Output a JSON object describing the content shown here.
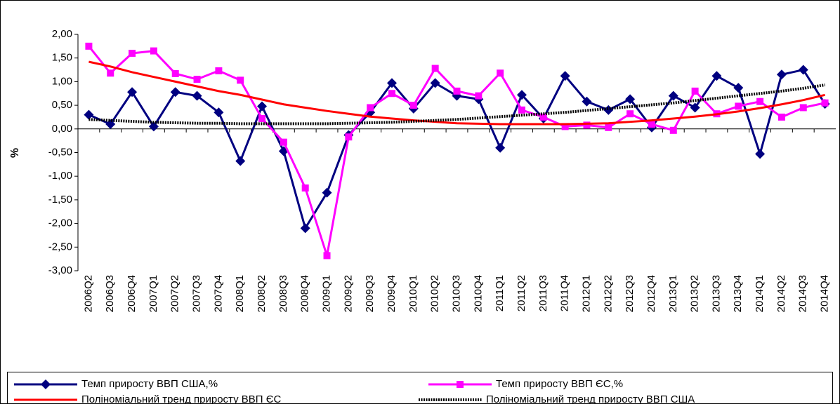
{
  "chart_data": {
    "type": "line",
    "y_label": "%",
    "categories": [
      "2006Q2",
      "2006Q3",
      "2006Q4",
      "2007Q1",
      "2007Q2",
      "2007Q3",
      "2007Q4",
      "2008Q1",
      "2008Q2",
      "2008Q3",
      "2008Q4",
      "2009Q1",
      "2009Q2",
      "2009Q3",
      "2009Q4",
      "2010Q1",
      "2010Q2",
      "2010Q3",
      "2010Q4",
      "2011Q1",
      "2011Q2",
      "2011Q3",
      "2011Q4",
      "2012Q1",
      "2012Q2",
      "2012Q3",
      "2012Q4",
      "2013Q1",
      "2013Q2",
      "2013Q3",
      "2013Q4",
      "2014Q1",
      "2014Q2",
      "2014Q3",
      "2014Q4"
    ],
    "series": [
      {
        "name": "Темп приросту ВВП США,%",
        "color": "#000080",
        "marker": "diamond",
        "values": [
          0.3,
          0.1,
          0.78,
          0.05,
          0.78,
          0.7,
          0.35,
          -0.68,
          0.48,
          -0.47,
          -2.1,
          -1.35,
          -0.13,
          0.35,
          0.97,
          0.43,
          0.97,
          0.7,
          0.63,
          -0.4,
          0.72,
          0.22,
          1.12,
          0.58,
          0.4,
          0.63,
          0.03,
          0.7,
          0.45,
          1.12,
          0.87,
          -0.53,
          1.15,
          1.25,
          0.53
        ]
      },
      {
        "name": "Темп приросту ВВП ЄС,%",
        "color": "#ff00ff",
        "marker": "square",
        "values": [
          1.75,
          1.18,
          1.6,
          1.65,
          1.17,
          1.05,
          1.23,
          1.03,
          0.22,
          -0.28,
          -1.25,
          -2.68,
          -0.17,
          0.45,
          0.75,
          0.5,
          1.28,
          0.8,
          0.7,
          1.18,
          0.4,
          0.25,
          0.05,
          0.08,
          0.03,
          0.32,
          0.1,
          -0.03,
          0.8,
          0.32,
          0.48,
          0.58,
          0.25,
          0.45,
          0.55
        ]
      },
      {
        "name": "Поліноміальний тренд приросту ВВП ЄС",
        "color": "#ff0000",
        "marker": "none",
        "dash": "solid",
        "values": [
          1.42,
          1.32,
          1.2,
          1.1,
          1.0,
          0.9,
          0.8,
          0.72,
          0.62,
          0.52,
          0.45,
          0.38,
          0.32,
          0.26,
          0.22,
          0.18,
          0.15,
          0.12,
          0.11,
          0.1,
          0.1,
          0.1,
          0.1,
          0.11,
          0.12,
          0.15,
          0.18,
          0.22,
          0.26,
          0.31,
          0.37,
          0.44,
          0.52,
          0.61,
          0.72
        ]
      },
      {
        "name": "Поліноміальний тренд приросту ВВП США",
        "color": "#000000",
        "marker": "none",
        "dash": "dotted",
        "values": [
          0.2,
          0.18,
          0.16,
          0.14,
          0.13,
          0.12,
          0.12,
          0.11,
          0.11,
          0.11,
          0.11,
          0.11,
          0.12,
          0.13,
          0.14,
          0.16,
          0.18,
          0.2,
          0.23,
          0.26,
          0.29,
          0.32,
          0.35,
          0.39,
          0.43,
          0.47,
          0.51,
          0.55,
          0.6,
          0.65,
          0.7,
          0.75,
          0.8,
          0.86,
          0.93
        ]
      }
    ],
    "ylim": [
      -3,
      2
    ],
    "yticks": [
      {
        "value": -3,
        "label": "-3,00"
      },
      {
        "value": -2.5,
        "label": "-2,50"
      },
      {
        "value": -2,
        "label": "-2,00"
      },
      {
        "value": -1.5,
        "label": "-1,50"
      },
      {
        "value": -1,
        "label": "-1,00"
      },
      {
        "value": -0.5,
        "label": "-0,50"
      },
      {
        "value": 0,
        "label": "0,00"
      },
      {
        "value": 0.5,
        "label": "0,50"
      },
      {
        "value": 1,
        "label": "1,00"
      },
      {
        "value": 1.5,
        "label": "1,50"
      },
      {
        "value": 2,
        "label": "2,00"
      }
    ],
    "legend": "bottom"
  }
}
